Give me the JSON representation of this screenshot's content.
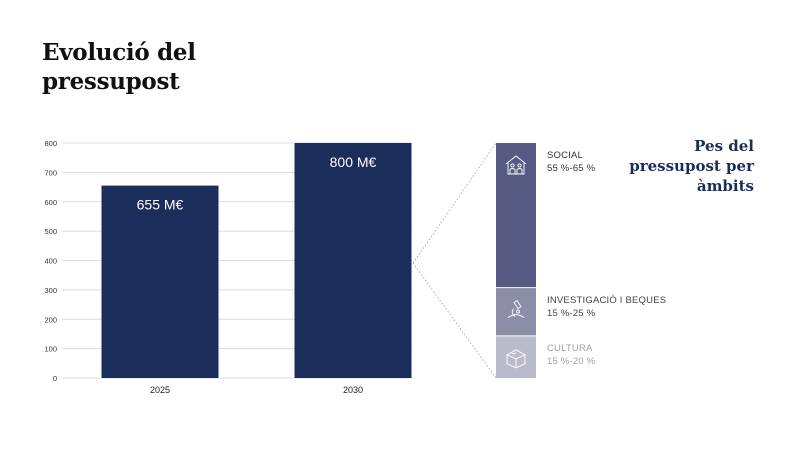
{
  "title": "Evolució del pressupost",
  "side_title": "Pes del pressupost per àmbits",
  "colors": {
    "bar": "#1b2d5b",
    "bar_label": "#ffffff",
    "axis_text": "#333333",
    "grid": "#dcdcdc",
    "segments": [
      "#555b82",
      "#8c8ea8",
      "#b9bacb"
    ],
    "segment_text": [
      "#333333",
      "#444444",
      "#a0a0a8"
    ]
  },
  "chart_data": [
    {
      "type": "bar",
      "categories": [
        "2025",
        "2030"
      ],
      "values": [
        655,
        800
      ],
      "data_labels": [
        "655 M€",
        "800 M€"
      ],
      "ylim": [
        0,
        800
      ],
      "yticks": [
        0,
        100,
        200,
        300,
        400,
        500,
        600,
        700,
        800
      ],
      "grid": true
    },
    {
      "type": "stacked-bar",
      "segments": [
        {
          "name": "SOCIAL",
          "range": "55 %-65 %",
          "share_min": 55,
          "share_max": 65,
          "icon": "family-house-icon"
        },
        {
          "name": "INVESTIGACIÓ I BEQUES",
          "range": "15 %-25 %",
          "share_min": 15,
          "share_max": 25,
          "icon": "microscope-icon"
        },
        {
          "name": "CULTURA",
          "range": "15 %-20 %",
          "share_min": 15,
          "share_max": 20,
          "icon": "theater-masks-icon"
        }
      ]
    }
  ]
}
